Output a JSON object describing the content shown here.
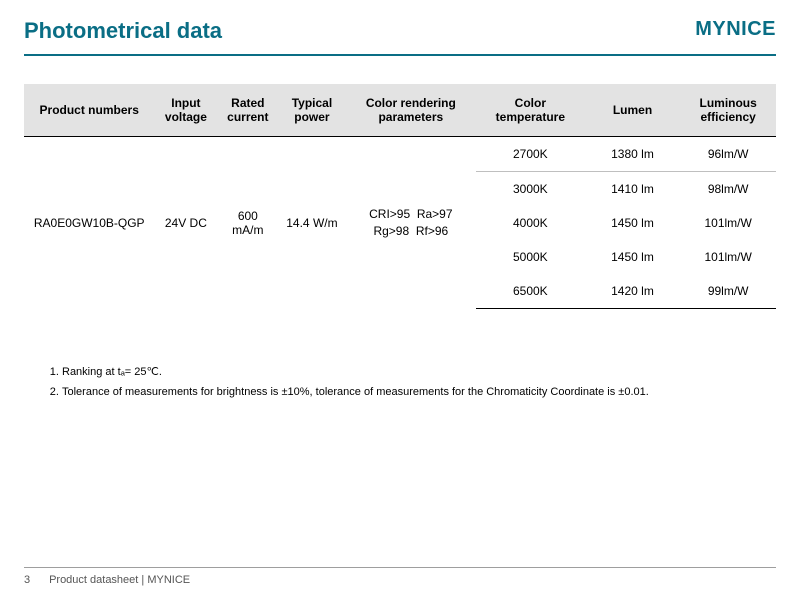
{
  "colors": {
    "title": "#0a6e85",
    "brand": "#0a6e85",
    "rule": "#0a6e85",
    "thead_bg": "#e3e3e3",
    "sub_border": "#bfbfbf",
    "footer_text": "#555555"
  },
  "header": {
    "title": "Photometrical data",
    "brand": "MYNICE"
  },
  "table": {
    "columns": [
      "Product numbers",
      "Input voltage",
      "Rated current",
      "Typical power",
      "Color rendering parameters",
      "Color temperature",
      "Lumen",
      "Luminous efficiency"
    ],
    "shared": {
      "product_number": "RA0E0GW10B-QGP",
      "input_voltage": "24V DC",
      "rated_current": "600 mA/m",
      "typical_power": "14.4 W/m",
      "crp_line1": "CRI>95  Ra>97",
      "crp_line2": "Rg>98  Rf>96"
    },
    "rows": [
      {
        "color_temp": "2700K",
        "lumen": "1380 lm",
        "efficiency": "96lm/W"
      },
      {
        "color_temp": "3000K",
        "lumen": "1410 lm",
        "efficiency": "98lm/W"
      },
      {
        "color_temp": "4000K",
        "lumen": "1450 lm",
        "efficiency": "101lm/W"
      },
      {
        "color_temp": "5000K",
        "lumen": "1450 lm",
        "efficiency": "101lm/W"
      },
      {
        "color_temp": "6500K",
        "lumen": "1420 lm",
        "efficiency": "99lm/W"
      }
    ]
  },
  "notes": {
    "items": [
      "Ranking at tₐ= 25℃.",
      "Tolerance of measurements for brightness is ±10%, tolerance of measurements for the Chromaticity Coordinate is ±0.01."
    ]
  },
  "footer": {
    "page_number": "3",
    "label": "Product datasheet | MYNICE"
  }
}
